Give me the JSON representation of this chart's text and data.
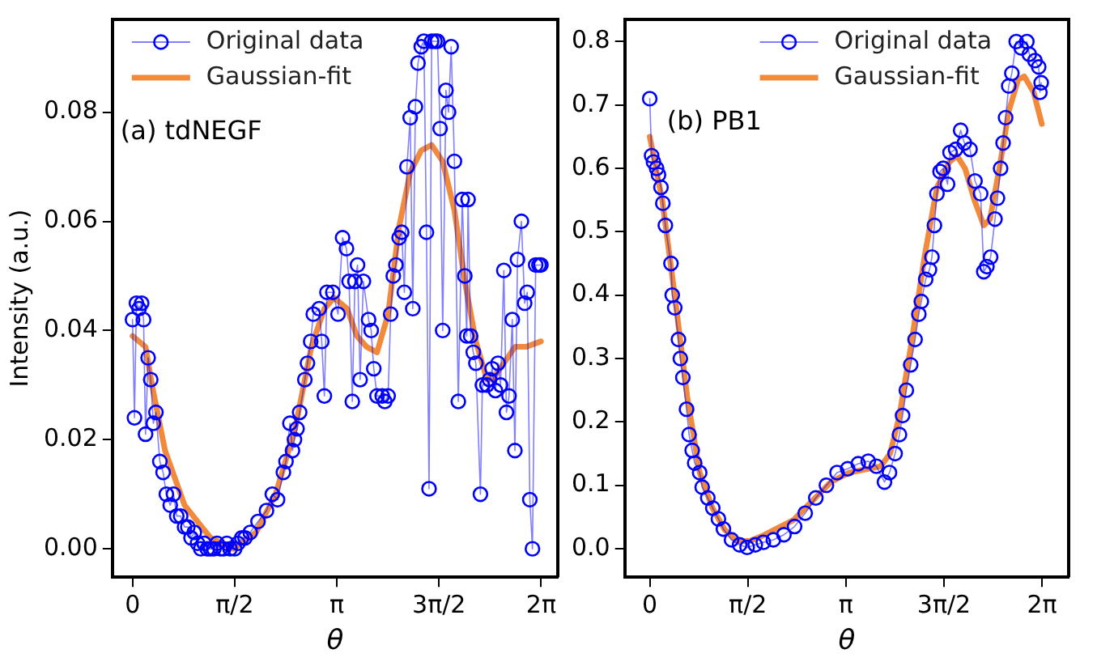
{
  "chart_data": [
    {
      "type": "line",
      "xlabel": "θ",
      "ylabel": "Intensity (a.u.)",
      "annotations": [
        "(a) tdNEGF"
      ],
      "legend": "top left",
      "grid": false,
      "xlim": [
        -0.31,
        6.54
      ],
      "ylim": [
        -0.0052,
        0.097
      ],
      "xticks": [
        {
          "value": 0,
          "label": "0"
        },
        {
          "value": 1.5708,
          "label": "π/2"
        },
        {
          "value": 3.1416,
          "label": "π"
        },
        {
          "value": 4.7124,
          "label": "3π/2"
        },
        {
          "value": 6.2832,
          "label": "2π"
        }
      ],
      "yticks": [
        {
          "value": 0,
          "label": "0.00"
        },
        {
          "value": 0.02,
          "label": "0.02"
        },
        {
          "value": 0.04,
          "label": "0.04"
        },
        {
          "value": 0.06,
          "label": "0.06"
        },
        {
          "value": 0.08,
          "label": "0.08"
        }
      ],
      "series": [
        {
          "name": "Original data",
          "type": "line",
          "marker": "circle",
          "color": "#0000ff",
          "x": [
            0,
            0.03,
            0.06,
            0.1,
            0.14,
            0.17,
            0.2,
            0.24,
            0.28,
            0.32,
            0.36,
            0.42,
            0.47,
            0.52,
            0.58,
            0.63,
            0.68,
            0.74,
            0.8,
            0.85,
            0.9,
            0.95,
            1.0,
            1.05,
            1.1,
            1.15,
            1.2,
            1.25,
            1.3,
            1.35,
            1.4,
            1.45,
            1.5,
            1.57,
            1.62,
            1.68,
            1.73,
            1.81,
            1.93,
            2.06,
            2.15,
            2.23,
            2.32,
            2.36,
            2.42,
            2.46,
            2.49,
            2.53,
            2.57,
            2.65,
            2.69,
            2.74,
            2.78,
            2.87,
            2.91,
            2.95,
            2.99,
            3.08,
            3.16,
            3.23,
            3.29,
            3.33,
            3.38,
            3.42,
            3.46,
            3.5,
            3.55,
            3.63,
            3.67,
            3.71,
            3.76,
            3.84,
            3.88,
            3.93,
            3.97,
            4.01,
            4.05,
            4.1,
            4.14,
            4.18,
            4.22,
            4.27,
            4.31,
            4.35,
            4.39,
            4.44,
            4.48,
            4.52,
            4.56,
            4.6,
            4.65,
            4.69,
            4.73,
            4.77,
            4.82,
            4.86,
            4.9,
            4.95,
            5.01,
            5.07,
            5.11,
            5.14,
            5.16,
            5.2,
            5.24,
            5.28,
            5.35,
            5.38,
            5.45,
            5.49,
            5.53,
            5.58,
            5.62,
            5.66,
            5.71,
            5.75,
            5.79,
            5.84,
            5.88,
            5.92,
            5.98,
            6.03,
            6.07,
            6.11,
            6.15,
            6.2,
            6.25,
            6.28
          ],
          "values": [
            0.042,
            0.024,
            0.045,
            0.044,
            0.045,
            0.042,
            0.021,
            0.035,
            0.031,
            0.023,
            0.025,
            0.016,
            0.014,
            0.01,
            0.008,
            0.01,
            0.006,
            0.006,
            0.004,
            0.004,
            0.002,
            0.003,
            0.001,
            0,
            0.001,
            0,
            0,
            0,
            0.001,
            0,
            0,
            0.001,
            0,
            0,
            0.001,
            0.002,
            0.002,
            0.003,
            0.005,
            0.007,
            0.01,
            0.009,
            0.014,
            0.016,
            0.023,
            0.018,
            0.02,
            0.022,
            0.025,
            0.031,
            0.034,
            0.038,
            0.043,
            0.044,
            0.038,
            0.028,
            0.047,
            0.047,
            0.043,
            0.057,
            0.055,
            0.049,
            0.027,
            0.049,
            0.052,
            0.031,
            0.049,
            0.042,
            0.04,
            0.033,
            0.028,
            0.028,
            0.027,
            0.028,
            0.043,
            0.05,
            0.052,
            0.057,
            0.058,
            0.047,
            0.07,
            0.079,
            0.044,
            0.081,
            0.089,
            0.092,
            0.093,
            0.058,
            0.011,
            0.093,
            0.093,
            0.093,
            0.077,
            0.04,
            0.084,
            0.08,
            0.092,
            0.071,
            0.027,
            0.064,
            0.05,
            0.039,
            0.064,
            0.039,
            0.036,
            0.034,
            0.01,
            0.03,
            0.03,
            0.031,
            0.033,
            0.029,
            0.034,
            0.03,
            0.051,
            0.025,
            0.028,
            0.042,
            0.018,
            0.053,
            0.06,
            0.045,
            0.047,
            0.009,
            0,
            0.052,
            0.052,
            0.052
          ]
        },
        {
          "name": "Gaussian-fit",
          "type": "line",
          "marker": "none",
          "color": "#f28a3c",
          "x": [
            0,
            0.2,
            0.3,
            0.5,
            0.8,
            1.2,
            1.55,
            1.9,
            2.2,
            2.5,
            2.75,
            2.95,
            3.1,
            3.3,
            3.45,
            3.6,
            3.76,
            3.93,
            4.1,
            4.27,
            4.44,
            4.6,
            4.77,
            4.95,
            5.11,
            5.28,
            5.45,
            5.53,
            5.71,
            5.88,
            6.05,
            6.28
          ],
          "values": [
            0.039,
            0.037,
            0.03,
            0.018,
            0.008,
            0.002,
            0,
            0.003,
            0.01,
            0.022,
            0.037,
            0.044,
            0.046,
            0.044,
            0.039,
            0.037,
            0.036,
            0.043,
            0.059,
            0.069,
            0.073,
            0.074,
            0.071,
            0.062,
            0.049,
            0.038,
            0.031,
            0.031,
            0.034,
            0.037,
            0.037,
            0.038
          ]
        }
      ]
    },
    {
      "type": "line",
      "xlabel": "θ",
      "annotations": [
        "(b) PB1"
      ],
      "legend": "top",
      "grid": false,
      "xlim": [
        -0.4,
        6.71
      ],
      "ylim": [
        -0.045,
        0.835
      ],
      "xticks": [
        {
          "value": 0,
          "label": "0"
        },
        {
          "value": 1.5708,
          "label": "π/2"
        },
        {
          "value": 3.1416,
          "label": "π"
        },
        {
          "value": 4.7124,
          "label": "3π/2"
        },
        {
          "value": 6.2832,
          "label": "2π"
        }
      ],
      "yticks": [
        {
          "value": 0,
          "label": "0.0"
        },
        0.1,
        0.2,
        0.3,
        0.4,
        0.5,
        0.6,
        0.7,
        0.8
      ],
      "series": [
        {
          "name": "Original data",
          "type": "line",
          "marker": "circle",
          "color": "#0000ff",
          "x": [
            0,
            0.03,
            0.06,
            0.11,
            0.14,
            0.18,
            0.21,
            0.25,
            0.34,
            0.36,
            0.4,
            0.46,
            0.49,
            0.53,
            0.59,
            0.63,
            0.68,
            0.72,
            0.8,
            0.84,
            0.93,
            1.01,
            1.1,
            1.18,
            1.31,
            1.44,
            1.56,
            1.69,
            1.82,
            1.98,
            2.15,
            2.32,
            2.49,
            2.66,
            2.83,
            3.0,
            3.17,
            3.34,
            3.5,
            3.63,
            3.76,
            3.84,
            3.93,
            4.0,
            4.05,
            4.11,
            4.18,
            4.25,
            4.31,
            4.35,
            4.42,
            4.48,
            4.52,
            4.56,
            4.6,
            4.65,
            4.7,
            4.77,
            4.81,
            4.9,
            4.98,
            5.04,
            5.13,
            5.21,
            5.3,
            5.35,
            5.4,
            5.46,
            5.53,
            5.57,
            5.62,
            5.66,
            5.7,
            5.75,
            5.8,
            5.87,
            5.95,
            6.04,
            6.08,
            6.17,
            6.23,
            6.25,
            6.27
          ],
          "values": [
            0.71,
            0.62,
            0.61,
            0.6,
            0.59,
            0.57,
            0.545,
            0.51,
            0.45,
            0.4,
            0.38,
            0.33,
            0.3,
            0.27,
            0.22,
            0.18,
            0.155,
            0.135,
            0.12,
            0.097,
            0.08,
            0.064,
            0.047,
            0.031,
            0.014,
            0.006,
            0.002,
            0.006,
            0.01,
            0.014,
            0.022,
            0.035,
            0.056,
            0.08,
            0.1,
            0.12,
            0.126,
            0.134,
            0.138,
            0.13,
            0.105,
            0.12,
            0.15,
            0.18,
            0.21,
            0.25,
            0.29,
            0.33,
            0.37,
            0.39,
            0.425,
            0.44,
            0.46,
            0.51,
            0.56,
            0.595,
            0.6,
            0.575,
            0.625,
            0.63,
            0.66,
            0.64,
            0.63,
            0.58,
            0.56,
            0.437,
            0.445,
            0.46,
            0.52,
            0.553,
            0.6,
            0.64,
            0.68,
            0.73,
            0.75,
            0.8,
            0.79,
            0.8,
            0.78,
            0.77,
            0.76,
            0.72,
            0.735
          ]
        },
        {
          "name": "Gaussian-fit",
          "type": "line",
          "marker": "none",
          "color": "#f28a3c",
          "x": [
            0,
            0.2,
            0.4,
            0.6,
            0.8,
            1.0,
            1.2,
            1.4,
            1.6,
            1.8,
            2.0,
            2.3,
            2.6,
            2.9,
            3.2,
            3.5,
            3.7,
            3.85,
            4.0,
            4.2,
            4.4,
            4.6,
            4.8,
            4.92,
            5.05,
            5.2,
            5.35,
            5.45,
            5.6,
            5.75,
            5.9,
            6.0,
            6.15,
            6.28
          ],
          "values": [
            0.65,
            0.55,
            0.4,
            0.24,
            0.12,
            0.065,
            0.03,
            0.012,
            0.012,
            0.02,
            0.03,
            0.045,
            0.075,
            0.105,
            0.12,
            0.126,
            0.13,
            0.15,
            0.21,
            0.33,
            0.46,
            0.57,
            0.61,
            0.62,
            0.6,
            0.55,
            0.51,
            0.52,
            0.6,
            0.69,
            0.74,
            0.745,
            0.72,
            0.67
          ]
        }
      ]
    }
  ]
}
